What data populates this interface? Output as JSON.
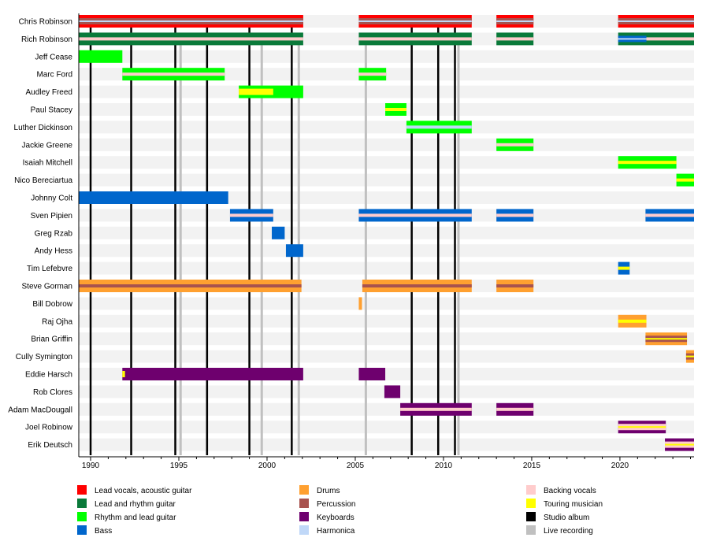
{
  "chart_data": {
    "type": "timeline",
    "title": "",
    "xlim": [
      1989.33,
      2024.2
    ],
    "x_ticks": [
      1990,
      1995,
      2000,
      2005,
      2010,
      2015,
      2020
    ],
    "x_tick_labels": [
      "1990",
      "1995",
      "2000",
      "2005",
      "2010",
      "2015",
      "2020"
    ],
    "roles": {
      "lead_vocals": {
        "label": "Lead vocals, acoustic guitar",
        "color": "#ff0000"
      },
      "lead_guitar": {
        "label": "Lead and rhythm guitar",
        "color": "#0a7a3a"
      },
      "rhythm_guitar": {
        "label": "Rhythm and lead guitar",
        "color": "#00ff00"
      },
      "bass": {
        "label": "Bass",
        "color": "#0066cc"
      },
      "drums": {
        "label": "Drums",
        "color": "#ffa030"
      },
      "percussion": {
        "label": "Percussion",
        "color": "#a8524e"
      },
      "keyboards": {
        "label": "Keyboards",
        "color": "#6e006e"
      },
      "harmonica": {
        "label": "Harmonica",
        "color": "#c0d8f8"
      },
      "backing_vocals": {
        "label": "Backing vocals",
        "color": "#ffcccc"
      },
      "touring": {
        "label": "Touring musician",
        "color": "#ffff00"
      },
      "studio": {
        "label": "Studio album",
        "color": "#000000"
      },
      "live": {
        "label": "Live recording",
        "color": "#c0c0c0"
      }
    },
    "legend_order": [
      [
        "lead_vocals",
        "lead_guitar",
        "rhythm_guitar",
        "bass"
      ],
      [
        "drums",
        "percussion",
        "keyboards",
        "harmonica"
      ],
      [
        "backing_vocals",
        "touring",
        "studio",
        "live"
      ]
    ],
    "studio_albums": [
      1990.0,
      1992.3,
      1994.8,
      1996.6,
      1999.0,
      2001.4,
      2008.2,
      2009.7,
      2010.65
    ],
    "live_recordings": [
      1995.1,
      1999.7,
      2001.8,
      2005.6,
      2010.85
    ],
    "members": [
      {
        "name": "Chris Robinson",
        "periods": [
          {
            "start": 1989.33,
            "end": 2002.05,
            "role": "lead_vocals",
            "stripes": [
              "percussion",
              "harmonica"
            ]
          },
          {
            "start": 2005.2,
            "end": 2011.6,
            "role": "lead_vocals",
            "stripes": [
              "percussion",
              "harmonica"
            ]
          },
          {
            "start": 2013.0,
            "end": 2015.1,
            "role": "lead_vocals",
            "stripes": [
              "percussion",
              "harmonica"
            ]
          },
          {
            "start": 2019.9,
            "end": 2024.2,
            "role": "lead_vocals",
            "stripes": [
              "percussion",
              "harmonica"
            ]
          }
        ]
      },
      {
        "name": "Rich Robinson",
        "periods": [
          {
            "start": 1989.33,
            "end": 2002.05,
            "role": "lead_guitar",
            "stripes": [
              "backing_vocals"
            ]
          },
          {
            "start": 2005.2,
            "end": 2011.6,
            "role": "lead_guitar",
            "stripes": [
              "backing_vocals"
            ]
          },
          {
            "start": 2013.0,
            "end": 2015.1,
            "role": "lead_guitar",
            "stripes": [
              "backing_vocals"
            ]
          },
          {
            "start": 2019.9,
            "end": 2024.2,
            "role": "lead_guitar",
            "stripes": [
              "backing_vocals"
            ]
          },
          {
            "start": 2019.9,
            "end": 2021.5,
            "role": "bass",
            "stripes": [
              "harmonica"
            ],
            "inner": true
          }
        ]
      },
      {
        "name": "Jeff Cease",
        "periods": [
          {
            "start": 1989.33,
            "end": 1991.8,
            "role": "rhythm_guitar"
          }
        ]
      },
      {
        "name": "Marc Ford",
        "periods": [
          {
            "start": 1991.8,
            "end": 1997.6,
            "role": "rhythm_guitar",
            "stripes": [
              "backing_vocals"
            ]
          },
          {
            "start": 2005.2,
            "end": 2006.75,
            "role": "rhythm_guitar",
            "stripes": [
              "backing_vocals"
            ]
          }
        ]
      },
      {
        "name": "Audley Freed",
        "periods": [
          {
            "start": 1998.4,
            "end": 2002.05,
            "role": "rhythm_guitar"
          },
          {
            "start": 1998.4,
            "end": 2000.35,
            "role": "touring",
            "inner": true
          }
        ]
      },
      {
        "name": "Paul Stacey",
        "periods": [
          {
            "start": 2006.7,
            "end": 2007.9,
            "role": "rhythm_guitar",
            "stripes": [
              "touring"
            ]
          }
        ]
      },
      {
        "name": "Luther Dickinson",
        "periods": [
          {
            "start": 2007.9,
            "end": 2011.6,
            "role": "rhythm_guitar",
            "stripes": [
              "harmonica"
            ]
          }
        ]
      },
      {
        "name": "Jackie Greene",
        "periods": [
          {
            "start": 2013.0,
            "end": 2015.1,
            "role": "rhythm_guitar",
            "stripes": [
              "backing_vocals"
            ]
          }
        ]
      },
      {
        "name": "Isaiah Mitchell",
        "periods": [
          {
            "start": 2019.9,
            "end": 2023.2,
            "role": "rhythm_guitar",
            "stripes": [
              "touring"
            ]
          }
        ]
      },
      {
        "name": "Nico Bereciartua",
        "periods": [
          {
            "start": 2023.2,
            "end": 2024.2,
            "role": "rhythm_guitar",
            "stripes": [
              "touring"
            ]
          }
        ]
      },
      {
        "name": "Johnny Colt",
        "periods": [
          {
            "start": 1989.33,
            "end": 1997.8,
            "role": "bass"
          }
        ]
      },
      {
        "name": "Sven Pipien",
        "periods": [
          {
            "start": 1997.9,
            "end": 2000.35,
            "role": "bass",
            "stripes": [
              "backing_vocals"
            ]
          },
          {
            "start": 2005.2,
            "end": 2011.6,
            "role": "bass",
            "stripes": [
              "backing_vocals"
            ]
          },
          {
            "start": 2013.0,
            "end": 2015.1,
            "role": "bass",
            "stripes": [
              "backing_vocals"
            ]
          },
          {
            "start": 2021.45,
            "end": 2024.2,
            "role": "bass",
            "stripes": [
              "backing_vocals"
            ]
          }
        ]
      },
      {
        "name": "Greg Rzab",
        "periods": [
          {
            "start": 2000.27,
            "end": 2001.0,
            "role": "bass"
          }
        ]
      },
      {
        "name": "Andy Hess",
        "periods": [
          {
            "start": 2001.07,
            "end": 2002.05,
            "role": "bass"
          }
        ]
      },
      {
        "name": "Tim Lefebvre",
        "periods": [
          {
            "start": 2019.9,
            "end": 2020.55,
            "role": "bass",
            "stripes": [
              "touring"
            ]
          }
        ]
      },
      {
        "name": "Steve Gorman",
        "periods": [
          {
            "start": 1989.33,
            "end": 2001.95,
            "role": "drums",
            "stripes": [
              "percussion"
            ]
          },
          {
            "start": 2005.4,
            "end": 2011.6,
            "role": "drums",
            "stripes": [
              "percussion"
            ]
          },
          {
            "start": 2013.0,
            "end": 2015.1,
            "role": "drums",
            "stripes": [
              "percussion"
            ]
          }
        ]
      },
      {
        "name": "Bill Dobrow",
        "periods": [
          {
            "start": 2005.2,
            "end": 2005.38,
            "role": "drums"
          }
        ]
      },
      {
        "name": "Raj Ojha",
        "periods": [
          {
            "start": 2019.9,
            "end": 2021.5,
            "role": "drums",
            "stripes": [
              "touring"
            ]
          }
        ]
      },
      {
        "name": "Brian Griffin",
        "periods": [
          {
            "start": 2021.45,
            "end": 2023.8,
            "role": "drums",
            "stripes": [
              "percussion",
              "touring"
            ]
          }
        ]
      },
      {
        "name": "Cully Symington",
        "periods": [
          {
            "start": 2023.75,
            "end": 2024.2,
            "role": "drums",
            "stripes": [
              "percussion",
              "touring"
            ]
          }
        ]
      },
      {
        "name": "Eddie Harsch",
        "periods": [
          {
            "start": 1991.8,
            "end": 2002.05,
            "role": "keyboards"
          },
          {
            "start": 1991.8,
            "end": 1991.95,
            "role": "touring",
            "inner": true
          },
          {
            "start": 2005.2,
            "end": 2006.7,
            "role": "keyboards"
          }
        ]
      },
      {
        "name": "Rob Clores",
        "periods": [
          {
            "start": 2006.65,
            "end": 2007.55,
            "role": "keyboards"
          }
        ]
      },
      {
        "name": "Adam MacDougall",
        "periods": [
          {
            "start": 2007.55,
            "end": 2011.6,
            "role": "keyboards",
            "stripes": [
              "backing_vocals"
            ]
          },
          {
            "start": 2013.0,
            "end": 2015.1,
            "role": "keyboards",
            "stripes": [
              "backing_vocals"
            ]
          }
        ]
      },
      {
        "name": "Joel Robinow",
        "periods": [
          {
            "start": 2019.9,
            "end": 2022.6,
            "role": "keyboards",
            "stripes": [
              "backing_vocals",
              "touring"
            ]
          }
        ]
      },
      {
        "name": "Erik Deutsch",
        "periods": [
          {
            "start": 2022.55,
            "end": 2024.2,
            "role": "keyboards",
            "stripes": [
              "backing_vocals",
              "touring"
            ]
          }
        ]
      }
    ]
  }
}
